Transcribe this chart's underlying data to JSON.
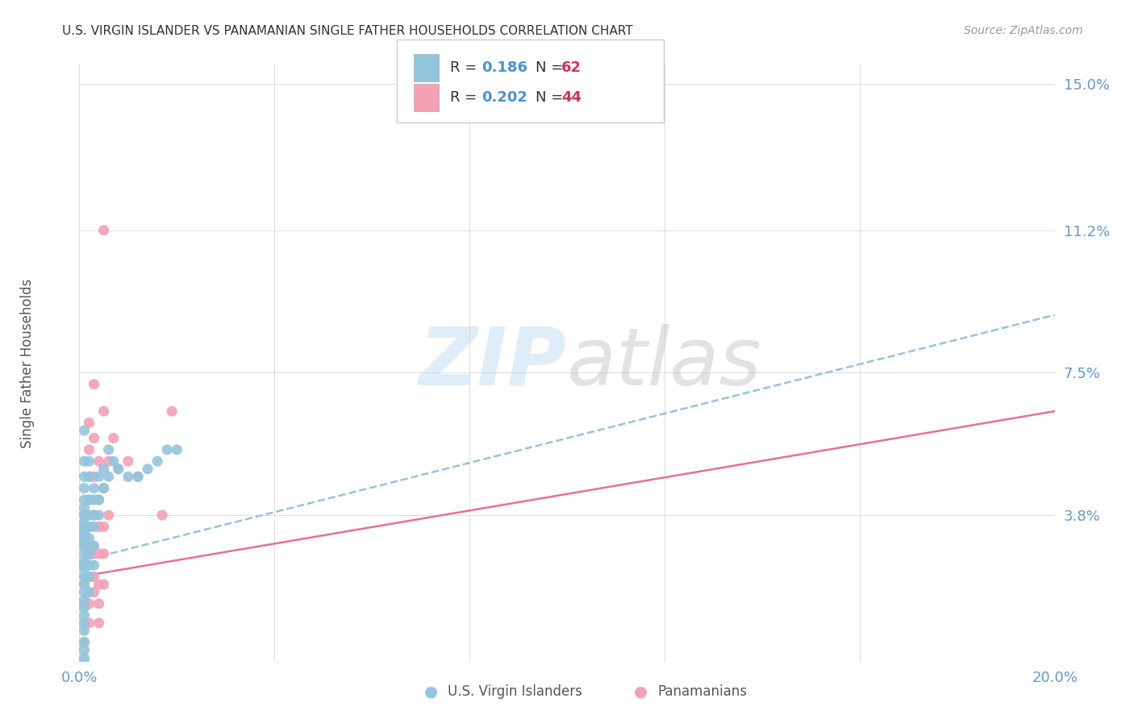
{
  "title": "U.S. VIRGIN ISLANDER VS PANAMANIAN SINGLE FATHER HOUSEHOLDS CORRELATION CHART",
  "source": "Source: ZipAtlas.com",
  "ylabel": "Single Father Households",
  "xlim": [
    0.0,
    0.2
  ],
  "ylim": [
    0.0,
    0.155
  ],
  "yticks": [
    0.038,
    0.075,
    0.112,
    0.15
  ],
  "ytick_labels": [
    "3.8%",
    "7.5%",
    "11.2%",
    "15.0%"
  ],
  "xticks": [
    0.0,
    0.2
  ],
  "xtick_labels": [
    "0.0%",
    "20.0%"
  ],
  "color_blue": "#92c5de",
  "color_pink": "#f4a0b5",
  "color_blue_line": "#92c5de",
  "color_pink_line": "#e87090",
  "color_tick": "#6699cc",
  "background_color": "#ffffff",
  "vi_scatter": [
    [
      0.001,
      0.06
    ],
    [
      0.001,
      0.052
    ],
    [
      0.001,
      0.048
    ],
    [
      0.001,
      0.045
    ],
    [
      0.001,
      0.042
    ],
    [
      0.001,
      0.04
    ],
    [
      0.001,
      0.038
    ],
    [
      0.001,
      0.038
    ],
    [
      0.001,
      0.036
    ],
    [
      0.001,
      0.035
    ],
    [
      0.001,
      0.034
    ],
    [
      0.001,
      0.033
    ],
    [
      0.001,
      0.032
    ],
    [
      0.001,
      0.031
    ],
    [
      0.001,
      0.03
    ],
    [
      0.001,
      0.028
    ],
    [
      0.001,
      0.026
    ],
    [
      0.001,
      0.025
    ],
    [
      0.001,
      0.024
    ],
    [
      0.001,
      0.022
    ],
    [
      0.001,
      0.02
    ],
    [
      0.001,
      0.018
    ],
    [
      0.001,
      0.016
    ],
    [
      0.001,
      0.014
    ],
    [
      0.001,
      0.012
    ],
    [
      0.001,
      0.01
    ],
    [
      0.001,
      0.008
    ],
    [
      0.001,
      0.005
    ],
    [
      0.001,
      0.003
    ],
    [
      0.001,
      0.001
    ],
    [
      0.001,
      0.0
    ],
    [
      0.002,
      0.052
    ],
    [
      0.002,
      0.048
    ],
    [
      0.002,
      0.042
    ],
    [
      0.002,
      0.038
    ],
    [
      0.002,
      0.035
    ],
    [
      0.002,
      0.032
    ],
    [
      0.002,
      0.028
    ],
    [
      0.002,
      0.025
    ],
    [
      0.002,
      0.022
    ],
    [
      0.002,
      0.018
    ],
    [
      0.003,
      0.045
    ],
    [
      0.003,
      0.042
    ],
    [
      0.003,
      0.038
    ],
    [
      0.003,
      0.035
    ],
    [
      0.003,
      0.03
    ],
    [
      0.003,
      0.025
    ],
    [
      0.004,
      0.048
    ],
    [
      0.004,
      0.042
    ],
    [
      0.004,
      0.038
    ],
    [
      0.005,
      0.05
    ],
    [
      0.005,
      0.045
    ],
    [
      0.006,
      0.055
    ],
    [
      0.006,
      0.048
    ],
    [
      0.007,
      0.052
    ],
    [
      0.008,
      0.05
    ],
    [
      0.01,
      0.048
    ],
    [
      0.012,
      0.048
    ],
    [
      0.014,
      0.05
    ],
    [
      0.016,
      0.052
    ],
    [
      0.018,
      0.055
    ],
    [
      0.02,
      0.055
    ]
  ],
  "pan_scatter": [
    [
      0.001,
      0.038
    ],
    [
      0.001,
      0.03
    ],
    [
      0.001,
      0.025
    ],
    [
      0.001,
      0.02
    ],
    [
      0.001,
      0.015
    ],
    [
      0.001,
      0.01
    ],
    [
      0.001,
      0.005
    ],
    [
      0.002,
      0.062
    ],
    [
      0.002,
      0.055
    ],
    [
      0.002,
      0.048
    ],
    [
      0.002,
      0.042
    ],
    [
      0.002,
      0.035
    ],
    [
      0.002,
      0.028
    ],
    [
      0.002,
      0.022
    ],
    [
      0.002,
      0.015
    ],
    [
      0.002,
      0.01
    ],
    [
      0.003,
      0.072
    ],
    [
      0.003,
      0.058
    ],
    [
      0.003,
      0.048
    ],
    [
      0.003,
      0.038
    ],
    [
      0.003,
      0.03
    ],
    [
      0.003,
      0.022
    ],
    [
      0.003,
      0.018
    ],
    [
      0.004,
      0.052
    ],
    [
      0.004,
      0.042
    ],
    [
      0.004,
      0.035
    ],
    [
      0.004,
      0.028
    ],
    [
      0.004,
      0.02
    ],
    [
      0.004,
      0.015
    ],
    [
      0.004,
      0.01
    ],
    [
      0.005,
      0.112
    ],
    [
      0.005,
      0.065
    ],
    [
      0.005,
      0.045
    ],
    [
      0.005,
      0.035
    ],
    [
      0.005,
      0.028
    ],
    [
      0.005,
      0.02
    ],
    [
      0.006,
      0.052
    ],
    [
      0.006,
      0.038
    ],
    [
      0.007,
      0.058
    ],
    [
      0.008,
      0.05
    ],
    [
      0.01,
      0.052
    ],
    [
      0.012,
      0.048
    ],
    [
      0.017,
      0.038
    ],
    [
      0.019,
      0.065
    ]
  ],
  "vi_trend_x": [
    0.0,
    0.2
  ],
  "vi_trend_y": [
    0.026,
    0.09
  ],
  "pan_trend_x": [
    0.0,
    0.2
  ],
  "pan_trend_y": [
    0.022,
    0.065
  ]
}
